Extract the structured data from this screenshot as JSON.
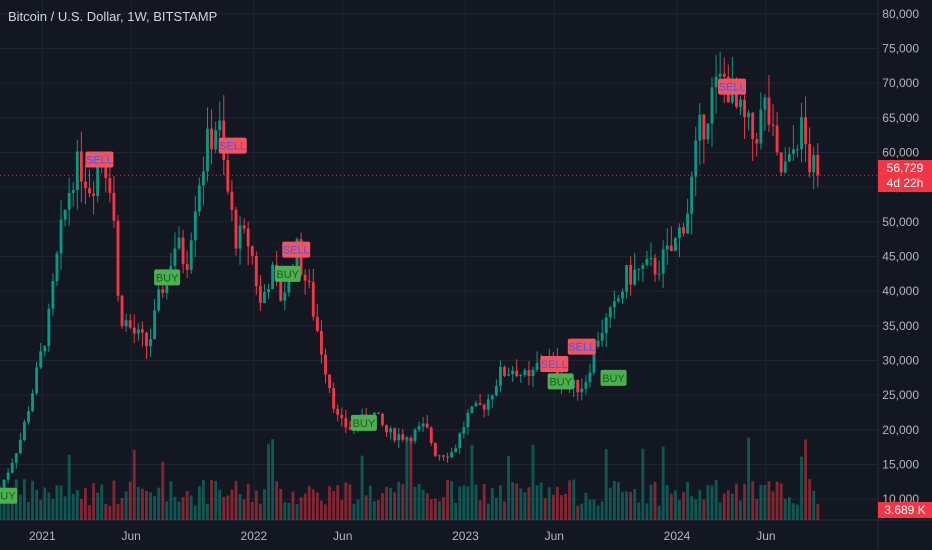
{
  "header": {
    "title": "Bitcoin / U.S. Dollar, 1W, BITSTAMP"
  },
  "price_axis": {
    "labels": [
      "80,000",
      "75,000",
      "70,000",
      "65,000",
      "60,000",
      "55,000",
      "50,000",
      "45,000",
      "40,000",
      "35,000",
      "30,000",
      "25,000",
      "20,000",
      "15,000",
      "10,000"
    ],
    "current_price": "56,729",
    "countdown": "4d 22h",
    "volume": "3.689 K"
  },
  "time_axis": {
    "labels": [
      {
        "text": "2021",
        "t": 0.0
      },
      {
        "text": "Jun",
        "t": 0.42
      },
      {
        "text": "2022",
        "t": 1.0
      },
      {
        "text": "Jun",
        "t": 1.42
      },
      {
        "text": "2023",
        "t": 2.0
      },
      {
        "text": "Jun",
        "t": 2.42
      },
      {
        "text": "2024",
        "t": 3.0
      },
      {
        "text": "Jun",
        "t": 3.42
      }
    ]
  },
  "colors": {
    "bg": "#131722",
    "up": "#089981",
    "down": "#f23645",
    "grid": "#1f2432",
    "buy": "#4caf50",
    "sell": "#f7525f"
  },
  "chart_data": {
    "type": "candlestick",
    "symbol": "Bitcoin / U.S. Dollar",
    "interval": "1W",
    "exchange": "BITSTAMP",
    "y_range": [
      7000,
      82000
    ],
    "x_range_years_from_2021": [
      -0.2,
      3.95
    ],
    "price_path": [
      [
        -0.2,
        10500
      ],
      [
        -0.15,
        13500
      ],
      [
        -0.08,
        19000
      ],
      [
        0.0,
        29000
      ],
      [
        0.05,
        36000
      ],
      [
        0.1,
        47000
      ],
      [
        0.16,
        57000
      ],
      [
        0.2,
        58000
      ],
      [
        0.25,
        55000
      ],
      [
        0.3,
        60000
      ],
      [
        0.35,
        55000
      ],
      [
        0.38,
        37000
      ],
      [
        0.45,
        34000
      ],
      [
        0.52,
        32000
      ],
      [
        0.58,
        40000
      ],
      [
        0.65,
        47000
      ],
      [
        0.7,
        44000
      ],
      [
        0.75,
        55000
      ],
      [
        0.8,
        61000
      ],
      [
        0.85,
        65000
      ],
      [
        0.88,
        57000
      ],
      [
        0.93,
        48000
      ],
      [
        1.0,
        47000
      ],
      [
        1.05,
        38000
      ],
      [
        1.1,
        43000
      ],
      [
        1.15,
        39000
      ],
      [
        1.22,
        46000
      ],
      [
        1.28,
        40000
      ],
      [
        1.35,
        30000
      ],
      [
        1.42,
        21000
      ],
      [
        1.5,
        20000
      ],
      [
        1.57,
        23000
      ],
      [
        1.65,
        19500
      ],
      [
        1.75,
        19000
      ],
      [
        1.83,
        20500
      ],
      [
        1.88,
        16500
      ],
      [
        1.96,
        16800
      ],
      [
        2.03,
        22000
      ],
      [
        2.12,
        24000
      ],
      [
        2.18,
        28000
      ],
      [
        2.25,
        29000
      ],
      [
        2.32,
        27000
      ],
      [
        2.38,
        30500
      ],
      [
        2.45,
        29000
      ],
      [
        2.5,
        26000
      ],
      [
        2.58,
        26500
      ],
      [
        2.65,
        34000
      ],
      [
        2.72,
        37000
      ],
      [
        2.78,
        42000
      ],
      [
        2.85,
        43000
      ],
      [
        2.92,
        43500
      ],
      [
        3.0,
        46000
      ],
      [
        3.07,
        52000
      ],
      [
        3.12,
        62000
      ],
      [
        3.18,
        68000
      ],
      [
        3.25,
        71000
      ],
      [
        3.3,
        66000
      ],
      [
        3.38,
        62000
      ],
      [
        3.44,
        67000
      ],
      [
        3.5,
        57000
      ],
      [
        3.55,
        58000
      ],
      [
        3.6,
        64000
      ],
      [
        3.65,
        58000
      ],
      [
        3.68,
        56729
      ]
    ],
    "signals": [
      {
        "type": "BUY",
        "t": -0.18,
        "price": 10500
      },
      {
        "type": "SELL",
        "t": 0.27,
        "price": 59000
      },
      {
        "type": "BUY",
        "t": 0.59,
        "price": 42000
      },
      {
        "type": "SELL",
        "t": 0.9,
        "price": 61000
      },
      {
        "type": "BUY",
        "t": 1.16,
        "price": 42500
      },
      {
        "type": "SELL",
        "t": 1.2,
        "price": 46000
      },
      {
        "type": "BUY",
        "t": 1.52,
        "price": 21000
      },
      {
        "type": "SELL",
        "t": 2.42,
        "price": 29500
      },
      {
        "type": "BUY",
        "t": 2.45,
        "price": 27000
      },
      {
        "type": "SELL",
        "t": 2.55,
        "price": 32000
      },
      {
        "type": "BUY",
        "t": 2.7,
        "price": 27500
      },
      {
        "type": "SELL",
        "t": 3.26,
        "price": 69500
      }
    ],
    "last_price": 56729,
    "last_volume": "3.689 K"
  }
}
